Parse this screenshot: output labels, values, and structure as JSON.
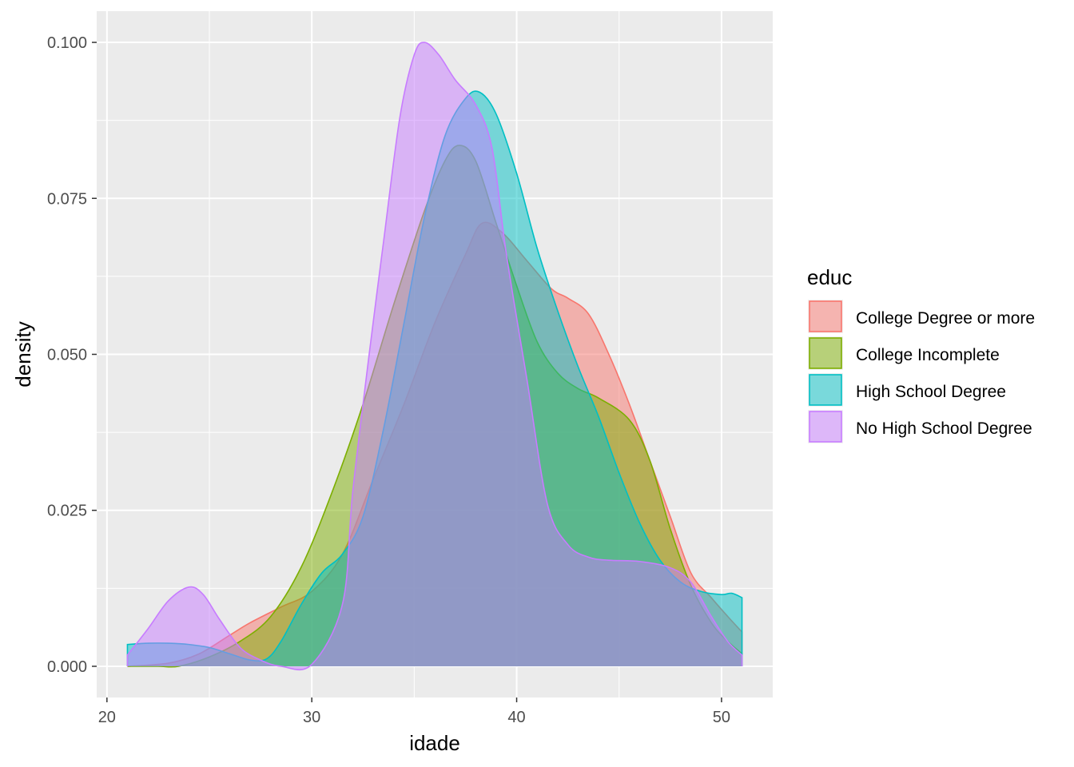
{
  "chart_data": {
    "type": "area",
    "xlabel": "idade",
    "ylabel": "density",
    "xlim": [
      19.5,
      52.5
    ],
    "ylim": [
      -0.005,
      0.105
    ],
    "x_ticks": [
      20,
      30,
      40,
      50
    ],
    "x_tick_labels": [
      "20",
      "30",
      "40",
      "50"
    ],
    "y_ticks": [
      0.0,
      0.025,
      0.05,
      0.075,
      0.1
    ],
    "y_tick_labels": [
      "0.000",
      "0.025",
      "0.050",
      "0.075",
      "0.100"
    ],
    "grid": true,
    "legend_position": "right",
    "legend_title": "educ",
    "series": [
      {
        "name": "College Degree or more",
        "color": "#F8766D",
        "points": [
          [
            21,
            0.0
          ],
          [
            23,
            0.0005
          ],
          [
            24.5,
            0.002
          ],
          [
            26,
            0.005
          ],
          [
            27,
            0.007
          ],
          [
            28.5,
            0.0095
          ],
          [
            30,
            0.012
          ],
          [
            31.5,
            0.018
          ],
          [
            33,
            0.03
          ],
          [
            34.5,
            0.042
          ],
          [
            36,
            0.055
          ],
          [
            37.5,
            0.066
          ],
          [
            38.3,
            0.071
          ],
          [
            39.3,
            0.0695
          ],
          [
            40.5,
            0.065
          ],
          [
            41.7,
            0.0605
          ],
          [
            42.5,
            0.059
          ],
          [
            43.5,
            0.0565
          ],
          [
            44.5,
            0.05
          ],
          [
            45.5,
            0.042
          ],
          [
            46.5,
            0.033
          ],
          [
            47.5,
            0.024
          ],
          [
            48.5,
            0.015
          ],
          [
            49.5,
            0.011
          ],
          [
            50.3,
            0.008
          ],
          [
            51,
            0.0055
          ]
        ]
      },
      {
        "name": "College Incomplete",
        "color": "#7CAE00",
        "points": [
          [
            21,
            0.0
          ],
          [
            22.5,
            0.0
          ],
          [
            23.5,
            0.0
          ],
          [
            25,
            0.0015
          ],
          [
            26.5,
            0.004
          ],
          [
            28,
            0.008
          ],
          [
            29.5,
            0.016
          ],
          [
            31,
            0.028
          ],
          [
            32.5,
            0.042
          ],
          [
            34,
            0.058
          ],
          [
            35.5,
            0.073
          ],
          [
            36.5,
            0.081
          ],
          [
            37.2,
            0.0835
          ],
          [
            38,
            0.081
          ],
          [
            39,
            0.071
          ],
          [
            40,
            0.061
          ],
          [
            41,
            0.052
          ],
          [
            42,
            0.047
          ],
          [
            43,
            0.0445
          ],
          [
            44,
            0.043
          ],
          [
            45.5,
            0.0395
          ],
          [
            46.5,
            0.033
          ],
          [
            47.5,
            0.022
          ],
          [
            48.5,
            0.013
          ],
          [
            49.5,
            0.007
          ],
          [
            50.3,
            0.004
          ],
          [
            51,
            0.002
          ]
        ]
      },
      {
        "name": "High School Degree",
        "color": "#00BFC4",
        "points": [
          [
            21,
            0.0035
          ],
          [
            22,
            0.0037
          ],
          [
            23,
            0.0037
          ],
          [
            24,
            0.0035
          ],
          [
            25,
            0.003
          ],
          [
            26,
            0.002
          ],
          [
            27,
            0.001
          ],
          [
            27.8,
            0.0012
          ],
          [
            28.5,
            0.004
          ],
          [
            29.5,
            0.01
          ],
          [
            30.5,
            0.015
          ],
          [
            31.5,
            0.018
          ],
          [
            32.5,
            0.024
          ],
          [
            33.5,
            0.038
          ],
          [
            34.5,
            0.055
          ],
          [
            35.5,
            0.072
          ],
          [
            36.5,
            0.085
          ],
          [
            37.5,
            0.091
          ],
          [
            38.2,
            0.092
          ],
          [
            39,
            0.0885
          ],
          [
            40,
            0.079
          ],
          [
            41,
            0.067
          ],
          [
            42,
            0.057
          ],
          [
            43,
            0.048
          ],
          [
            44,
            0.04
          ],
          [
            45,
            0.031
          ],
          [
            46,
            0.023
          ],
          [
            47,
            0.017
          ],
          [
            48,
            0.0135
          ],
          [
            49,
            0.012
          ],
          [
            50,
            0.0115
          ],
          [
            50.5,
            0.0117
          ],
          [
            51,
            0.011
          ]
        ]
      },
      {
        "name": "No High School Degree",
        "color": "#C77CFF",
        "points": [
          [
            21,
            0.0018
          ],
          [
            22,
            0.006
          ],
          [
            23,
            0.0105
          ],
          [
            24,
            0.0127
          ],
          [
            24.7,
            0.0115
          ],
          [
            25.5,
            0.0075
          ],
          [
            26.5,
            0.003
          ],
          [
            27.5,
            0.001
          ],
          [
            28.5,
            0.0
          ],
          [
            30,
            0.0003
          ],
          [
            31.5,
            0.01
          ],
          [
            32,
            0.028
          ],
          [
            32.8,
            0.05
          ],
          [
            33.5,
            0.068
          ],
          [
            34.3,
            0.088
          ],
          [
            35,
            0.098
          ],
          [
            35.5,
            0.1
          ],
          [
            36.2,
            0.098
          ],
          [
            37,
            0.094
          ],
          [
            38,
            0.09
          ],
          [
            38.8,
            0.083
          ],
          [
            39.5,
            0.066
          ],
          [
            40.5,
            0.046
          ],
          [
            41.5,
            0.026
          ],
          [
            42.5,
            0.0195
          ],
          [
            43.5,
            0.0175
          ],
          [
            44.5,
            0.017
          ],
          [
            46,
            0.0168
          ],
          [
            47.5,
            0.0158
          ],
          [
            48.5,
            0.0135
          ],
          [
            49.5,
            0.008
          ],
          [
            50.3,
            0.004
          ],
          [
            51,
            0.0018
          ]
        ]
      }
    ]
  }
}
